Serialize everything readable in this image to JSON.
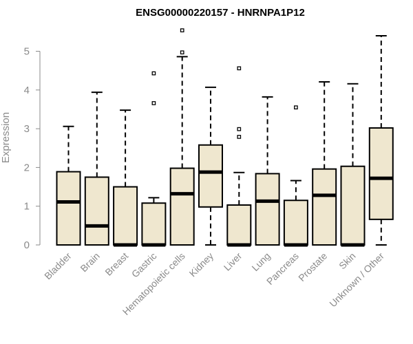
{
  "chart_data": {
    "type": "boxplot",
    "title": "ENSG00000220157 - HNRNPA1P12",
    "xlabel": "",
    "ylabel": "Expression",
    "ylim": [
      0,
      5.55
    ],
    "yticks": [
      0,
      1,
      2,
      3,
      4,
      5
    ],
    "grid": false,
    "box_fill": "#efe7cf",
    "categories": [
      "Bladder",
      "Brain",
      "Breast",
      "Gastric",
      "Hematopoietic cells",
      "Kidney",
      "Liver",
      "Lung",
      "Pancreas",
      "Prostate",
      "Skin",
      "Unknown / Other"
    ],
    "boxes": [
      {
        "min": 0,
        "q1": 0,
        "median": 1.11,
        "q3": 1.89,
        "max": 3.06,
        "outliers": []
      },
      {
        "min": 0,
        "q1": 0,
        "median": 0.49,
        "q3": 1.75,
        "max": 3.94,
        "outliers": []
      },
      {
        "min": 0,
        "q1": 0,
        "median": 0,
        "q3": 1.5,
        "max": 3.48,
        "outliers": []
      },
      {
        "min": 0,
        "q1": 0,
        "median": 0,
        "q3": 1.08,
        "max": 1.22,
        "outliers": [
          3.66,
          4.43
        ]
      },
      {
        "min": 0,
        "q1": 0,
        "median": 1.32,
        "q3": 1.98,
        "max": 4.86,
        "outliers": [
          4.97,
          5.54
        ]
      },
      {
        "min": 0,
        "q1": 0.98,
        "median": 1.88,
        "q3": 2.58,
        "max": 4.07,
        "outliers": []
      },
      {
        "min": 0,
        "q1": 0,
        "median": 0,
        "q3": 1.03,
        "max": 1.87,
        "outliers": [
          2.79,
          2.99,
          4.56
        ]
      },
      {
        "min": 0,
        "q1": 0,
        "median": 1.13,
        "q3": 1.84,
        "max": 3.82,
        "outliers": []
      },
      {
        "min": 0,
        "q1": 0,
        "median": 0,
        "q3": 1.15,
        "max": 1.66,
        "outliers": [
          3.55
        ]
      },
      {
        "min": 0,
        "q1": 0,
        "median": 1.28,
        "q3": 1.96,
        "max": 4.21,
        "outliers": []
      },
      {
        "min": 0,
        "q1": 0,
        "median": 0,
        "q3": 2.03,
        "max": 4.16,
        "outliers": []
      },
      {
        "min": 0,
        "q1": 0.66,
        "median": 1.72,
        "q3": 3.02,
        "max": 5.4,
        "outliers": []
      }
    ]
  }
}
